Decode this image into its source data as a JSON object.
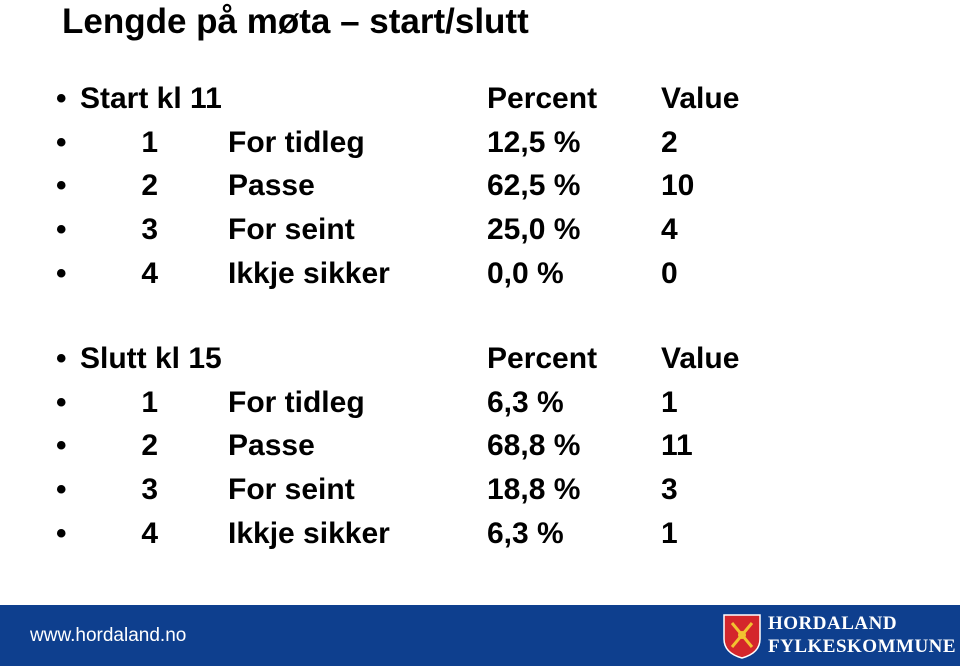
{
  "title": "Lengde på møta – start/slutt",
  "sections": [
    {
      "label": "Start kl 11",
      "columns": [
        "Percent",
        "Value"
      ],
      "rows": [
        [
          "1",
          "For tidleg",
          "12,5 %",
          "2"
        ],
        [
          "2",
          "Passe",
          "62,5 %",
          "10"
        ],
        [
          "3",
          "For seint",
          "25,0 %",
          "4"
        ],
        [
          "4",
          "Ikkje sikker",
          "0,0 %",
          "0"
        ]
      ]
    },
    {
      "label": "Slutt kl 15",
      "columns": [
        "Percent",
        "Value"
      ],
      "rows": [
        [
          "1",
          "For tidleg",
          "6,3 %",
          "1"
        ],
        [
          "2",
          "Passe",
          "68,8 %",
          "11"
        ],
        [
          "3",
          "For seint",
          "18,8 %",
          "3"
        ],
        [
          "4",
          "Ikkje sikker",
          "6,3 %",
          "1"
        ]
      ]
    }
  ],
  "footer": {
    "url": "www.hordaland.no",
    "logo_line1": "HORDALAND",
    "logo_line2": "FYLKESKOMMUNE"
  }
}
